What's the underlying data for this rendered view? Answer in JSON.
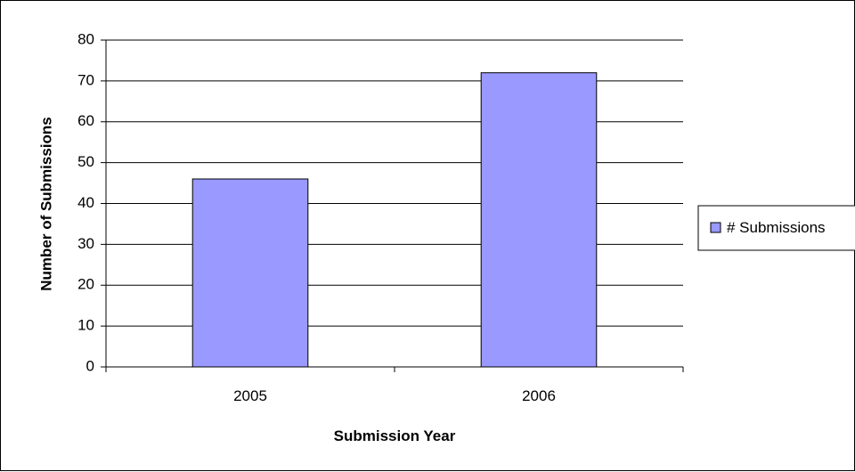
{
  "chart_data": {
    "type": "bar",
    "title": "",
    "xlabel": "Submission Year",
    "ylabel": "Number of Submissions",
    "categories": [
      "2005",
      "2006"
    ],
    "series": [
      {
        "name": "# Submissions",
        "values": [
          46,
          72
        ],
        "color": "#9999ff"
      }
    ],
    "ylim": [
      0,
      80
    ],
    "ytick_step": 10,
    "grid": true,
    "legend_position": "right"
  }
}
